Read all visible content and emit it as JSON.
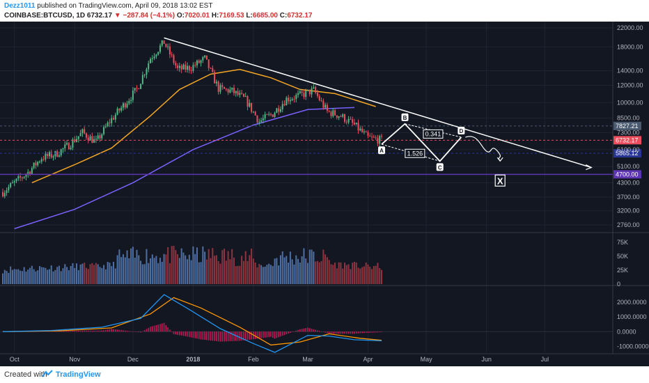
{
  "header": {
    "author": "Dezz1011",
    "published": " published on TradingView.com, April 09, 2018 13:02 EST",
    "symbol": "COINBASE:BTCUSD, 1D",
    "last": "6732.17",
    "change": "−287.84 (−4.1%)",
    "o_label": "O:",
    "o_value": "7020.01",
    "h_label": "H:",
    "h_value": "7169.53",
    "l_label": "L:",
    "l_value": "6685.00",
    "c_label": "C:",
    "c_value": "6732.17"
  },
  "footer": {
    "created": "Created with",
    "brand": "TradingView"
  },
  "colors": {
    "bg": "#131722",
    "up": "#53b987",
    "down": "#eb4d5c",
    "ma50": "#f5a623",
    "ma200": "#7b61ff",
    "line": "#ffffff",
    "macd": "#2196f3",
    "signal": "#ff9800",
    "hist": "#e91e63"
  },
  "chart_data": {
    "type": "candlestick",
    "price_axis": {
      "scale": "log",
      "ticks": [
        "22000.00",
        "18000.00",
        "14000.00",
        "12000.00",
        "10000.00",
        "8500.00",
        "7300.00",
        "6100.00",
        "5100.00",
        "4300.00",
        "3700.00",
        "3200.00",
        "2760.00"
      ],
      "tick_values": [
        22000,
        18000,
        14000,
        12000,
        10000,
        8500,
        7300,
        6100,
        5100,
        4300,
        3700,
        3200,
        2760
      ],
      "range": [
        2600,
        23500
      ]
    },
    "price_labels": [
      {
        "text": "7827.21",
        "value": 7827.21,
        "color": "#4a5a70"
      },
      {
        "text": "6732.17",
        "value": 6732.17,
        "color": "#eb4d5c"
      },
      {
        "text": "5865.12",
        "value": 5865.12,
        "color": "#283593"
      },
      {
        "text": "4700.00",
        "value": 4700,
        "color": "#5e35b1"
      }
    ],
    "x_axis": {
      "ticks": [
        "Oct",
        "Nov",
        "Dec",
        "2018",
        "Feb",
        "Mar",
        "Apr",
        "May",
        "Jun",
        "Jul"
      ],
      "tick_dates": [
        "2017-10-01",
        "2017-11-01",
        "2017-12-01",
        "2018-01-01",
        "2018-02-01",
        "2018-03-01",
        "2018-04-01",
        "2018-05-01",
        "2018-06-01",
        "2018-07-01"
      ],
      "range": [
        "2017-09-25",
        "2018-08-05"
      ]
    },
    "series": [
      {
        "name": "candles",
        "x": [
          "2017-09-25",
          "2017-10-01",
          "2017-10-08",
          "2017-10-15",
          "2017-10-22",
          "2017-10-29",
          "2017-11-05",
          "2017-11-12",
          "2017-11-19",
          "2017-11-26",
          "2017-12-03",
          "2017-12-10",
          "2017-12-17",
          "2017-12-24",
          "2017-12-31",
          "2018-01-07",
          "2018-01-14",
          "2018-01-21",
          "2018-01-28",
          "2018-02-04",
          "2018-02-11",
          "2018-02-18",
          "2018-02-25",
          "2018-03-04",
          "2018-03-11",
          "2018-03-18",
          "2018-03-25",
          "2018-04-01",
          "2018-04-08"
        ],
        "y": [
          3900,
          4300,
          4800,
          5600,
          5800,
          6400,
          7300,
          6600,
          8200,
          9700,
          11500,
          16000,
          18900,
          14200,
          14500,
          15900,
          11600,
          11300,
          10300,
          8200,
          8900,
          10400,
          10800,
          11400,
          9100,
          8700,
          7900,
          6900,
          6732
        ]
      },
      {
        "name": "ma50",
        "x": [
          "2017-10-10",
          "2017-11-01",
          "2017-11-20",
          "2017-12-10",
          "2017-12-25",
          "2018-01-10",
          "2018-01-25",
          "2018-02-10",
          "2018-02-25",
          "2018-03-15",
          "2018-04-05"
        ],
        "y": [
          4300,
          5200,
          6200,
          8700,
          11500,
          13500,
          14200,
          13000,
          11500,
          11000,
          9600
        ]
      },
      {
        "name": "ma200",
        "x": [
          "2017-10-01",
          "2017-11-01",
          "2017-12-01",
          "2018-01-01",
          "2018-02-01",
          "2018-03-01",
          "2018-03-25"
        ],
        "y": [
          2650,
          3250,
          4300,
          6100,
          7900,
          9300,
          9500
        ]
      },
      {
        "name": "volume",
        "scale_ticks": [
          "75K",
          "50K",
          "25K",
          "0"
        ],
        "scale_values": [
          75000,
          50000,
          25000,
          0
        ]
      },
      {
        "name": "macd",
        "scale_ticks": [
          "2000.0000",
          "1000.0000",
          "0.0000",
          "-1000.0000"
        ],
        "scale_values": [
          2000,
          1000,
          0,
          -1000
        ]
      }
    ],
    "annotations": [
      {
        "type": "trendline",
        "from": {
          "x": "2017-12-17",
          "y": 19800
        },
        "to": {
          "x": "2018-07-25",
          "y": 5050
        }
      },
      {
        "type": "point",
        "label": "A",
        "x": "2018-04-08",
        "y": 6450
      },
      {
        "type": "point",
        "label": "B",
        "x": "2018-04-20",
        "y": 8000
      },
      {
        "type": "point",
        "label": "C",
        "x": "2018-05-08",
        "y": 5400
      },
      {
        "type": "point",
        "label": "D",
        "x": "2018-05-19",
        "y": 6950
      },
      {
        "type": "ratio",
        "text": "0.341"
      },
      {
        "type": "ratio",
        "text": "1.526"
      },
      {
        "type": "target",
        "label": "X",
        "x": "2018-06-08",
        "y": 4600
      }
    ]
  }
}
